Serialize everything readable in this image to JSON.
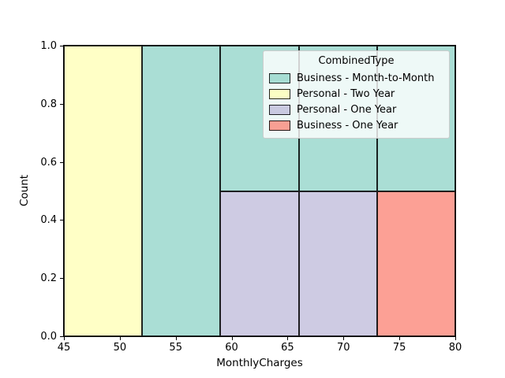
{
  "chart_data": {
    "type": "bar",
    "subtype": "normalized-stacked-histogram",
    "title": "",
    "xlabel": "MonthlyCharges",
    "ylabel": "Count",
    "xlim": [
      45,
      80
    ],
    "ylim": [
      0.0,
      1.0
    ],
    "x_ticks": [
      45,
      50,
      55,
      60,
      65,
      70,
      75,
      80
    ],
    "x_tick_labels": [
      "45",
      "50",
      "55",
      "60",
      "65",
      "70",
      "75",
      "80"
    ],
    "y_ticks": [
      0.0,
      0.2,
      0.4,
      0.6,
      0.8,
      1.0
    ],
    "y_tick_labels": [
      "0.0",
      "0.2",
      "0.4",
      "0.6",
      "0.8",
      "1.0"
    ],
    "grid": false,
    "legend_position": "upper right",
    "legend_title": "CombinedType",
    "legend": [
      {
        "label": "Business - Month-to-Month",
        "color": "#8dd3c7"
      },
      {
        "label": "Personal - Two Year",
        "color": "#ffffb3"
      },
      {
        "label": "Personal - One Year",
        "color": "#bebada"
      },
      {
        "label": "Business - One Year",
        "color": "#fb8072"
      }
    ],
    "fill_alpha": 0.75,
    "bar_edge_color": "#000000",
    "bins": [
      {
        "x_range": [
          45,
          52
        ],
        "segments": [
          {
            "series": "Personal - Two Year",
            "from": 0.0,
            "to": 1.0
          }
        ]
      },
      {
        "x_range": [
          52,
          59
        ],
        "segments": [
          {
            "series": "Business - Month-to-Month",
            "from": 0.0,
            "to": 1.0
          }
        ]
      },
      {
        "x_range": [
          59,
          66
        ],
        "segments": [
          {
            "series": "Personal - One Year",
            "from": 0.0,
            "to": 0.5
          },
          {
            "series": "Business - Month-to-Month",
            "from": 0.5,
            "to": 1.0
          }
        ]
      },
      {
        "x_range": [
          66,
          73
        ],
        "segments": [
          {
            "series": "Personal - One Year",
            "from": 0.0,
            "to": 0.5
          },
          {
            "series": "Business - Month-to-Month",
            "from": 0.5,
            "to": 1.0
          }
        ]
      },
      {
        "x_range": [
          73,
          80
        ],
        "segments": [
          {
            "series": "Business - One Year",
            "from": 0.0,
            "to": 0.5
          },
          {
            "series": "Business - Month-to-Month",
            "from": 0.5,
            "to": 1.0
          }
        ]
      }
    ]
  }
}
